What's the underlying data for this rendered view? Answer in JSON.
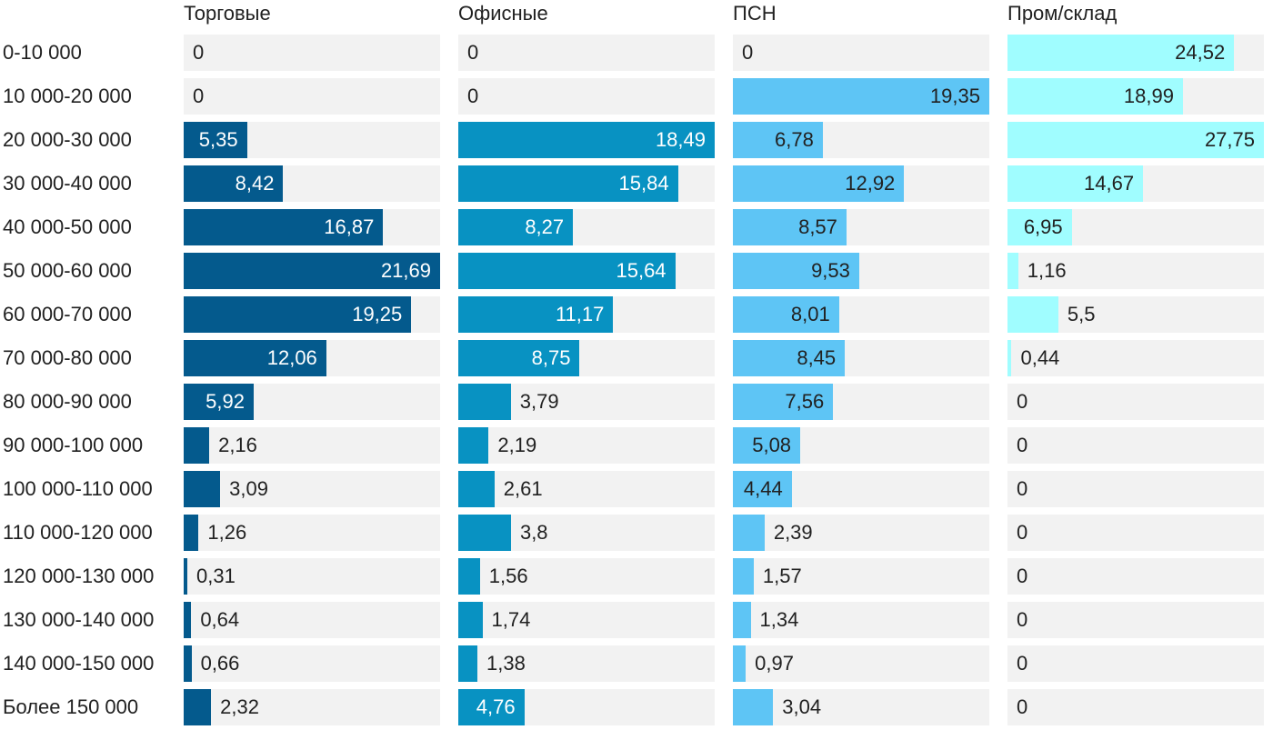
{
  "chart_data": {
    "type": "bar",
    "orientation": "horizontal",
    "layout": "small-multiples",
    "categories": [
      "0-10 000",
      "10 000-20 000",
      "20 000-30 000",
      "30 000-40 000",
      "40 000-50 000",
      "50 000-60 000",
      "60 000-70 000",
      "70 000-80 000",
      "80 000-90 000",
      "90 000-100 000",
      "100 000-110 000",
      "110 000-120 000",
      "120 000-130 000",
      "130 000-140 000",
      "140 000-150 000",
      "Более 150 000"
    ],
    "series": [
      {
        "name": "Торговые",
        "color": "#045a8d",
        "label_color": "#ffffff",
        "max": 21.69,
        "values": [
          0,
          0,
          5.35,
          8.42,
          16.87,
          21.69,
          19.25,
          12.06,
          5.92,
          2.16,
          3.09,
          1.26,
          0.31,
          0.64,
          0.66,
          2.32
        ],
        "labels": [
          "0",
          "0",
          "5,35",
          "8,42",
          "16,87",
          "21,69",
          "19,25",
          "12,06",
          "5,92",
          "2,16",
          "3,09",
          "1,26",
          "0,31",
          "0,64",
          "0,66",
          "2,32"
        ]
      },
      {
        "name": "Офисные",
        "color": "#0892c2",
        "label_color": "#ffffff",
        "max": 18.49,
        "values": [
          0,
          0,
          18.49,
          15.84,
          8.27,
          15.64,
          11.17,
          8.75,
          3.79,
          2.19,
          2.61,
          3.8,
          1.56,
          1.74,
          1.38,
          4.76
        ],
        "labels": [
          "0",
          "0",
          "18,49",
          "15,84",
          "8,27",
          "15,64",
          "11,17",
          "8,75",
          "3,79",
          "2,19",
          "2,61",
          "3,8",
          "1,56",
          "1,74",
          "1,38",
          "4,76"
        ]
      },
      {
        "name": "ПСН",
        "color": "#5ec5f5",
        "label_color": "#212121",
        "max": 19.35,
        "values": [
          0,
          19.35,
          6.78,
          12.92,
          8.57,
          9.53,
          8.01,
          8.45,
          7.56,
          5.08,
          4.44,
          2.39,
          1.57,
          1.34,
          0.97,
          3.04
        ],
        "labels": [
          "0",
          "19,35",
          "6,78",
          "12,92",
          "8,57",
          "9,53",
          "8,01",
          "8,45",
          "7,56",
          "5,08",
          "4,44",
          "2,39",
          "1,57",
          "1,34",
          "0,97",
          "3,04"
        ]
      },
      {
        "name": "Пром/склад",
        "color": "#a0fdff",
        "label_color": "#212121",
        "max": 27.75,
        "values": [
          24.52,
          18.99,
          27.75,
          14.67,
          6.95,
          1.16,
          5.5,
          0.44,
          0,
          0,
          0,
          0,
          0,
          0,
          0,
          0
        ],
        "labels": [
          "24,52",
          "18,99",
          "27,75",
          "14,67",
          "6,95",
          "1,16",
          "5,5",
          "0,44",
          "0",
          "0",
          "0",
          "0",
          "0",
          "0",
          "0",
          "0"
        ]
      }
    ],
    "title": "",
    "xlabel": "",
    "ylabel": "",
    "grid": false,
    "legend": "none"
  }
}
